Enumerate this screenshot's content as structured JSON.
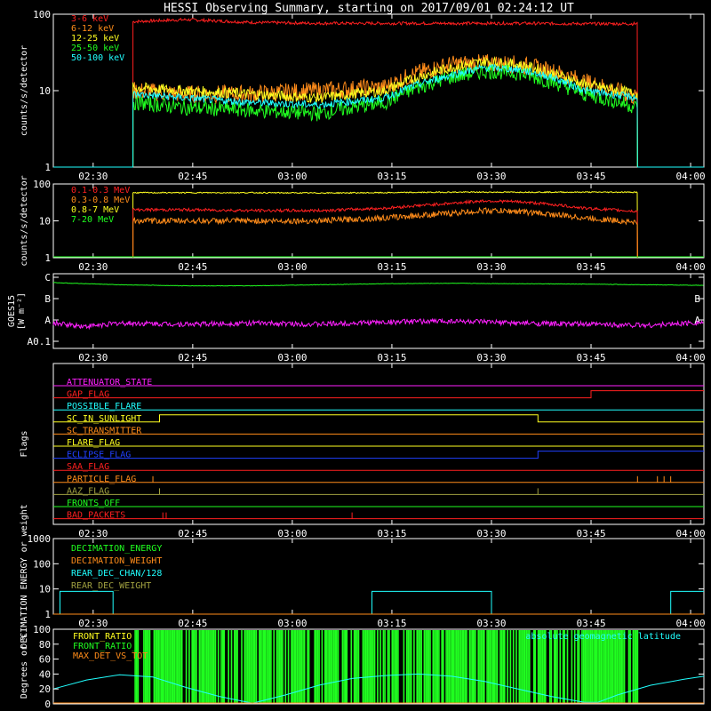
{
  "title": "HESSI Observing Summary, starting on 2017/09/01 02:24:12 UT",
  "colors": {
    "bg": "#000000",
    "axis": "#ffffff",
    "red": "#ff2020",
    "orange": "#ff8c1a",
    "yellow": "#ffff20",
    "green": "#20ff20",
    "cyan": "#20ffff",
    "magenta": "#ff20ff",
    "blue": "#2040ff",
    "olive": "#a0a040",
    "salmon": "#ff6040"
  },
  "time_axis": {
    "start_min": 0,
    "end_min": 98,
    "tick_labels": [
      "02:30",
      "02:45",
      "03:00",
      "03:15",
      "03:30",
      "03:45",
      "04:00"
    ],
    "tick_minutes": [
      6,
      21,
      36,
      51,
      66,
      81,
      96
    ],
    "obs_start_min": 12,
    "obs_end_min": 88
  },
  "chart_data": [
    {
      "type": "line",
      "id": "hxr",
      "ylabel": "counts/s/detector",
      "yscale": "log",
      "ylim": [
        1,
        100
      ],
      "yticks": [
        "1",
        "10",
        "100"
      ],
      "legend": [
        {
          "name": "3-6 keV",
          "color": "#ff2020"
        },
        {
          "name": "6-12 keV",
          "color": "#ff8c1a"
        },
        {
          "name": "12-25 keV",
          "color": "#ffff20"
        },
        {
          "name": "25-50 keV",
          "color": "#20ff20"
        },
        {
          "name": "50-100 keV",
          "color": "#20ffff"
        }
      ],
      "series": [
        {
          "name": "3-6 keV",
          "color": "#ff2020",
          "x": [
            12,
            20,
            30,
            40,
            50,
            60,
            70,
            80,
            88
          ],
          "y": [
            80,
            85,
            78,
            76,
            76,
            76,
            76,
            75,
            75
          ]
        },
        {
          "name": "6-12 keV",
          "color": "#ff8c1a",
          "x": [
            12,
            20,
            30,
            40,
            50,
            55,
            60,
            65,
            70,
            75,
            80,
            88
          ],
          "y": [
            10,
            9,
            9,
            10,
            11,
            17,
            22,
            23,
            22,
            18,
            13,
            8
          ]
        },
        {
          "name": "12-25 keV",
          "color": "#ffff20",
          "x": [
            12,
            20,
            30,
            40,
            50,
            60,
            65,
            70,
            75,
            80,
            88
          ],
          "y": [
            11,
            10,
            9,
            8,
            10,
            20,
            24,
            22,
            17,
            12,
            9
          ]
        },
        {
          "name": "25-50 keV",
          "color": "#20ff20",
          "x": [
            12,
            20,
            30,
            40,
            50,
            60,
            65,
            70,
            75,
            80,
            88
          ],
          "y": [
            7,
            6,
            5.5,
            5,
            7,
            15,
            18,
            17,
            13,
            9,
            6
          ]
        },
        {
          "name": "50-100 keV",
          "color": "#20ffff",
          "x": [
            12,
            20,
            30,
            40,
            50,
            60,
            65,
            70,
            75,
            80,
            88
          ],
          "y": [
            9,
            8,
            7,
            6.5,
            8,
            16,
            20,
            19,
            15,
            10,
            8
          ]
        }
      ]
    },
    {
      "type": "line",
      "id": "gamma",
      "ylabel": "counts/s/detector",
      "yscale": "log",
      "ylim": [
        1,
        100
      ],
      "yticks": [
        "1",
        "10",
        "100"
      ],
      "legend": [
        {
          "name": "0.1-0.3 MeV",
          "color": "#ff2020"
        },
        {
          "name": "0.3-0.8 MeV",
          "color": "#ff8c1a"
        },
        {
          "name": "0.8-7 MeV",
          "color": "#ffff20"
        },
        {
          "name": "7-20 MeV",
          "color": "#20ff20"
        }
      ],
      "series": [
        {
          "name": "0.1-0.3 MeV",
          "color": "#ff2020",
          "x": [
            12,
            20,
            30,
            40,
            50,
            60,
            65,
            70,
            75,
            80,
            88
          ],
          "y": [
            20,
            20,
            19,
            19,
            22,
            30,
            35,
            33,
            28,
            22,
            18
          ]
        },
        {
          "name": "0.3-0.8 MeV",
          "color": "#ff8c1a",
          "x": [
            12,
            20,
            30,
            40,
            50,
            60,
            65,
            70,
            75,
            80,
            88
          ],
          "y": [
            10,
            10,
            10,
            10,
            12,
            16,
            19,
            18,
            15,
            12,
            9
          ]
        },
        {
          "name": "0.8-7 MeV",
          "color": "#ffff20",
          "x": [
            12,
            20,
            30,
            40,
            50,
            60,
            70,
            80,
            88
          ],
          "y": [
            58,
            58,
            58,
            57,
            58,
            60,
            60,
            60,
            60
          ]
        },
        {
          "name": "7-20 MeV",
          "color": "#20ff20",
          "x": [
            0,
            98
          ],
          "y": [
            1,
            1
          ]
        }
      ]
    },
    {
      "type": "line",
      "id": "goes",
      "ylabel": "GOES15",
      "yunits": "[W m⁻²]",
      "yticks": [
        "A0.1",
        "A",
        "B",
        "C"
      ],
      "series": [
        {
          "name": "long",
          "color": "#20ff20",
          "x": [
            0,
            5,
            10,
            20,
            30,
            40,
            50,
            60,
            70,
            80,
            90,
            98
          ],
          "y": [
            2.75,
            2.7,
            2.65,
            2.6,
            2.6,
            2.65,
            2.7,
            2.72,
            2.7,
            2.68,
            2.65,
            2.62
          ]
        },
        {
          "name": "short",
          "color": "#ff20ff",
          "x": [
            0,
            5,
            10,
            20,
            30,
            40,
            50,
            60,
            70,
            80,
            90,
            98
          ],
          "y": [
            0.85,
            0.7,
            0.85,
            0.8,
            0.85,
            0.8,
            0.9,
            0.95,
            0.85,
            0.8,
            0.75,
            0.9
          ]
        }
      ]
    },
    {
      "type": "flags",
      "id": "flags",
      "ylabel": "Flags",
      "rows": [
        {
          "name": "ATTENUATOR_STATE",
          "color": "#ff20ff",
          "steps": []
        },
        {
          "name": "GAP_FLAG",
          "color": "#ff2020",
          "steps": [
            [
              81,
              1
            ]
          ]
        },
        {
          "name": "POSSIBLE_FLARE",
          "color": "#20ffff",
          "steps": []
        },
        {
          "name": "SC_IN_SUNLIGHT",
          "color": "#ffff20",
          "steps": [
            [
              16,
              1
            ],
            [
              73,
              0
            ]
          ]
        },
        {
          "name": "SC_TRANSMITTER",
          "color": "#ff8c1a",
          "steps": []
        },
        {
          "name": "FLARE_FLAG",
          "color": "#ffff20",
          "steps": []
        },
        {
          "name": "ECLIPSE_FLAG",
          "color": "#2040ff",
          "steps": [
            [
              16,
              0
            ],
            [
              73,
              1
            ]
          ]
        },
        {
          "name": "SAA_FLAG",
          "color": "#ff2020",
          "steps": []
        },
        {
          "name": "PARTICLE_FLAG",
          "color": "#ff8c1a",
          "spikes": [
            15,
            88,
            91,
            92,
            93
          ]
        },
        {
          "name": "AAZ_FLAG",
          "color": "#a0a040",
          "spikes": [
            16,
            73
          ]
        },
        {
          "name": "FRONTS_OFF",
          "color": "#20ff20",
          "steps": []
        },
        {
          "name": "BAD_PACKETS",
          "color": "#ff2020",
          "spikes": [
            16.5,
            17,
            45
          ]
        }
      ]
    },
    {
      "type": "line",
      "id": "decim",
      "ylabel": "DECIMATION ENERGY or weight",
      "yscale": "log",
      "ylim": [
        1,
        1000
      ],
      "yticks": [
        "1",
        "10",
        "100",
        "1000"
      ],
      "legend": [
        {
          "name": "DECIMATION_ENERGY",
          "color": "#20ff20"
        },
        {
          "name": "DECIMATION_WEIGHT",
          "color": "#ff8c1a"
        },
        {
          "name": "REAR_DEC_CHAN/128",
          "color": "#20ffff"
        },
        {
          "name": "REAR_DEC_WEIGHT",
          "color": "#a0a040"
        }
      ],
      "series": [
        {
          "name": "REAR_DEC_CHAN/128",
          "color": "#20ffff",
          "x": [
            0,
            1,
            1,
            9,
            9,
            48,
            48,
            66,
            66,
            93,
            93,
            98
          ],
          "y": [
            1,
            1,
            8,
            8,
            1,
            1,
            8,
            8,
            1,
            1,
            8,
            8
          ]
        },
        {
          "name": "DECIMATION_WEIGHT",
          "color": "#ff8c1a",
          "x": [
            0,
            98
          ],
          "y": [
            1,
            1
          ]
        }
      ]
    },
    {
      "type": "line",
      "id": "ratio",
      "ylabel": "Degrees or %",
      "ylim": [
        0,
        100
      ],
      "yticks": [
        "0",
        "20",
        "40",
        "60",
        "80",
        "100"
      ],
      "legend": [
        {
          "name": "FRONT_RATIO",
          "color": "#ffff20"
        },
        {
          "name": "FRONT_RATIO_",
          "color": "#20ff20"
        },
        {
          "name": "MAX_DET_VS_TOT",
          "color": "#ff8c1a"
        }
      ],
      "right_label": "absolute geomagnetic latitude",
      "series": [
        {
          "name": "absolute geomagnetic latitude",
          "color": "#20ffff",
          "x": [
            0,
            5,
            10,
            15,
            20,
            25,
            30,
            35,
            40,
            45,
            50,
            55,
            60,
            65,
            70,
            75,
            80,
            82,
            85,
            90,
            95,
            98
          ],
          "y": [
            20,
            32,
            39,
            36,
            22,
            10,
            1,
            12,
            25,
            34,
            38,
            40,
            37,
            30,
            20,
            10,
            2,
            2,
            12,
            25,
            33,
            37
          ]
        }
      ]
    }
  ]
}
